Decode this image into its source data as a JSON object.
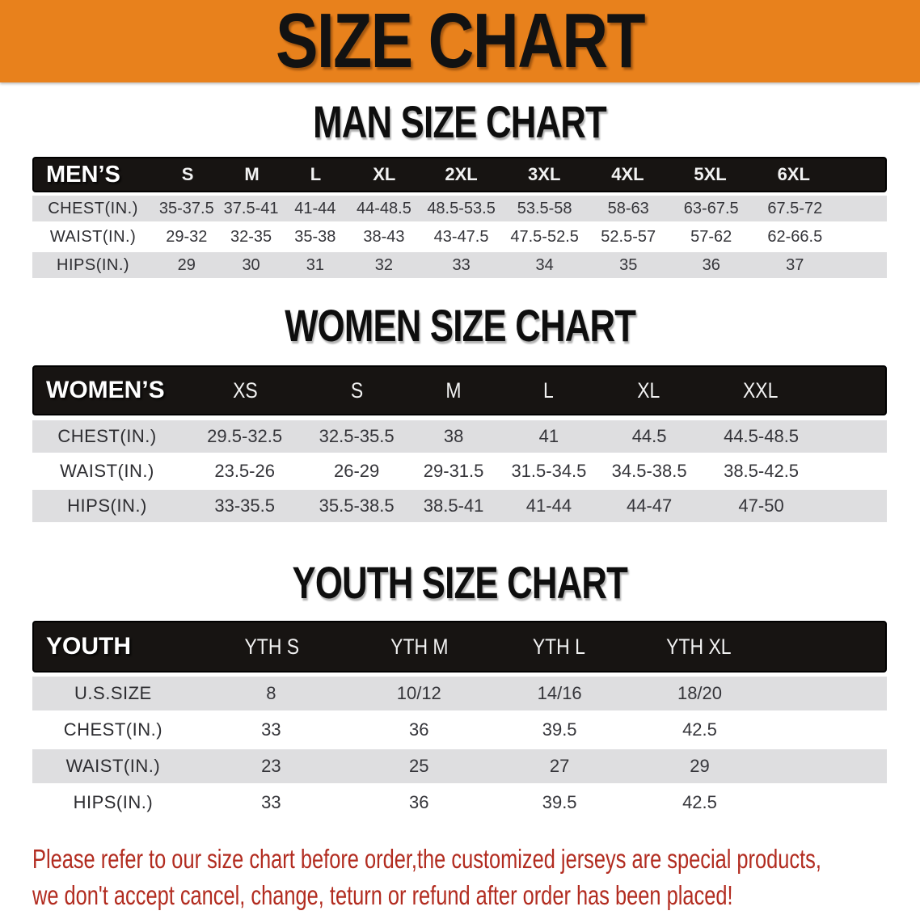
{
  "banner": {
    "title": "SIZE CHART",
    "bg_color": "#E8811C"
  },
  "colors": {
    "band_black": "#171412",
    "row_gray": "#DEDEE0",
    "note_red": "#B22C20"
  },
  "sections": {
    "men": {
      "heading": "MAN SIZE CHART",
      "table": {
        "name": "MEN’S",
        "sizes": [
          "S",
          "M",
          "L",
          "XL",
          "2XL",
          "3XL",
          "4XL",
          "5XL",
          "6XL"
        ],
        "rows": [
          {
            "label": "CHEST(IN.)",
            "values": [
              "35-37.5",
              "37.5-41",
              "41-44",
              "44-48.5",
              "48.5-53.5",
              "53.5-58",
              "58-63",
              "63-67.5",
              "67.5-72"
            ]
          },
          {
            "label": "WAIST(IN.)",
            "values": [
              "29-32",
              "32-35",
              "35-38",
              "38-43",
              "43-47.5",
              "47.5-52.5",
              "52.5-57",
              "57-62",
              "62-66.5"
            ]
          },
          {
            "label": "HIPS(IN.)",
            "values": [
              "29",
              "30",
              "31",
              "32",
              "33",
              "34",
              "35",
              "36",
              "37"
            ]
          }
        ]
      }
    },
    "women": {
      "heading": "WOMEN SIZE CHART",
      "table": {
        "name": "WOMEN’S",
        "sizes": [
          "XS",
          "S",
          "M",
          "L",
          "XL",
          "XXL"
        ],
        "rows": [
          {
            "label": "CHEST(IN.)",
            "values": [
              "29.5-32.5",
              "32.5-35.5",
              "38",
              "41",
              "44.5",
              "44.5-48.5"
            ]
          },
          {
            "label": "WAIST(IN.)",
            "values": [
              "23.5-26",
              "26-29",
              "29-31.5",
              "31.5-34.5",
              "34.5-38.5",
              "38.5-42.5"
            ]
          },
          {
            "label": "HIPS(IN.)",
            "values": [
              "33-35.5",
              "35.5-38.5",
              "38.5-41",
              "41-44",
              "44-47",
              "47-50"
            ]
          }
        ]
      }
    },
    "youth": {
      "heading": "YOUTH SIZE CHART",
      "table": {
        "name": "YOUTH",
        "sizes": [
          "YTH S",
          "YTH M",
          "YTH L",
          "YTH XL"
        ],
        "rows": [
          {
            "label": "U.S.SIZE",
            "values": [
              "8",
              "10/12",
              "14/16",
              "18/20"
            ]
          },
          {
            "label": "CHEST(IN.)",
            "values": [
              "33",
              "36",
              "39.5",
              "42.5"
            ]
          },
          {
            "label": "WAIST(IN.)",
            "values": [
              "23",
              "25",
              "27",
              "29"
            ]
          },
          {
            "label": "HIPS(IN.)",
            "values": [
              "33",
              "36",
              "39.5",
              "42.5"
            ]
          }
        ]
      }
    }
  },
  "footer_note": {
    "line1": "Please refer to our size chart before order,the customized jerseys are special products,",
    "line2": "we don't accept cancel, change, teturn or refund after order has been placed!"
  }
}
